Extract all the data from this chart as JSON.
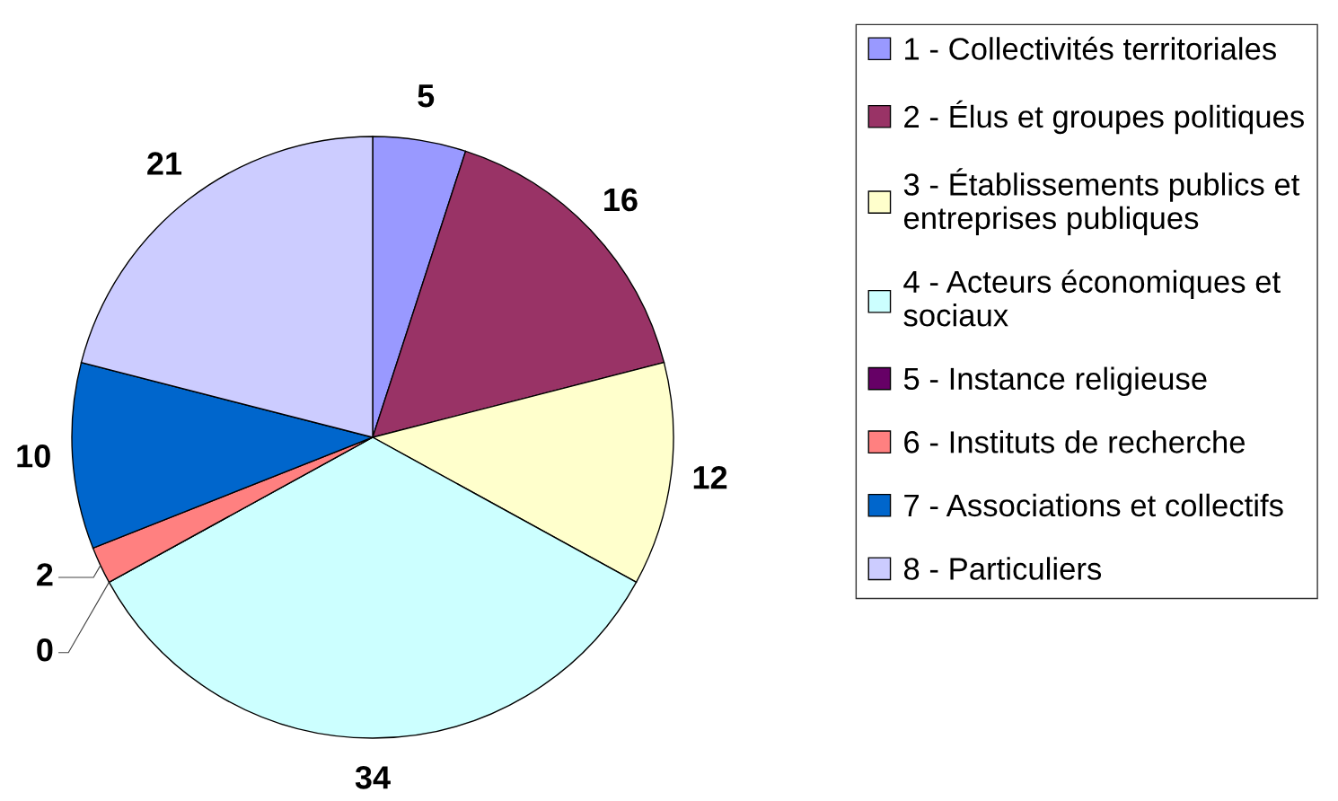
{
  "chart_data": {
    "type": "pie",
    "categories": [
      "1 - Collectivités territoriales",
      "2 - Élus et groupes politiques",
      "3 - Établissements publics et\nentreprises publiques",
      "4 - Acteurs économiques et\nsociaux",
      "5 - Instance religieuse",
      "6 - Instituts de recherche",
      "7 - Associations et collectifs",
      "8 - Particuliers"
    ],
    "values": [
      5,
      16,
      12,
      34,
      0,
      2,
      10,
      21
    ],
    "value_labels": [
      "5",
      "16",
      "12",
      "34",
      "0",
      "2",
      "10",
      "21"
    ],
    "colors": [
      "#9999ff",
      "#993366",
      "#ffffcc",
      "#ccffff",
      "#660066",
      "#ff8080",
      "#0066cc",
      "#ccccff"
    ],
    "legend": "right"
  }
}
